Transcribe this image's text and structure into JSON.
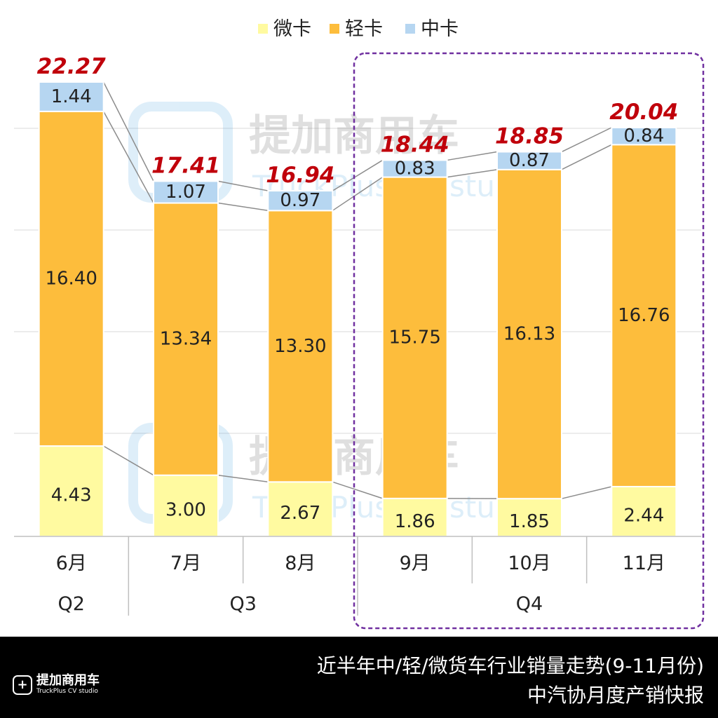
{
  "chart_data": {
    "type": "bar",
    "stacked": true,
    "categories": [
      "6月",
      "7月",
      "8月",
      "9月",
      "10月",
      "11月"
    ],
    "quarters": [
      {
        "label": "Q2",
        "span": [
          0,
          0
        ]
      },
      {
        "label": "Q3",
        "span": [
          1,
          2
        ]
      },
      {
        "label": "Q4",
        "span": [
          3,
          5
        ]
      }
    ],
    "series": [
      {
        "name": "微卡",
        "color": "#fffaa0",
        "values": [
          4.43,
          3.0,
          2.67,
          1.86,
          1.85,
          2.44
        ],
        "labels": [
          "4.43",
          "3.00",
          "2.67",
          "1.86",
          "1.85",
          "2.44"
        ]
      },
      {
        "name": "轻卡",
        "color": "#fdbd3c",
        "values": [
          16.4,
          13.34,
          13.3,
          15.75,
          16.13,
          16.76
        ],
        "labels": [
          "16.40",
          "13.34",
          "13.30",
          "15.75",
          "16.13",
          "16.76"
        ]
      },
      {
        "name": "中卡",
        "color": "#b6d6f1",
        "values": [
          1.44,
          1.07,
          0.97,
          0.83,
          0.87,
          0.84
        ],
        "labels": [
          "1.44",
          "1.07",
          "0.97",
          "0.83",
          "0.87",
          "0.84"
        ]
      }
    ],
    "totals": [
      "22.27",
      "17.41",
      "16.94",
      "18.44",
      "18.85",
      "20.04"
    ],
    "ylim": [
      0,
      22.27
    ],
    "legend": "top-center",
    "highlight": {
      "span": [
        3,
        5
      ],
      "color": "#7030a0",
      "style": "dashed"
    },
    "watermark": {
      "cn": "提加商用车",
      "en": "TruckPlus CV studio"
    }
  },
  "footer": {
    "title": "近半年中/轻/微货车行业销量走势(9-11月份)",
    "subtitle": "中汽协月度产销快报",
    "logo_cn": "提加商用车",
    "logo_en": "TruckPlus CV studio"
  }
}
